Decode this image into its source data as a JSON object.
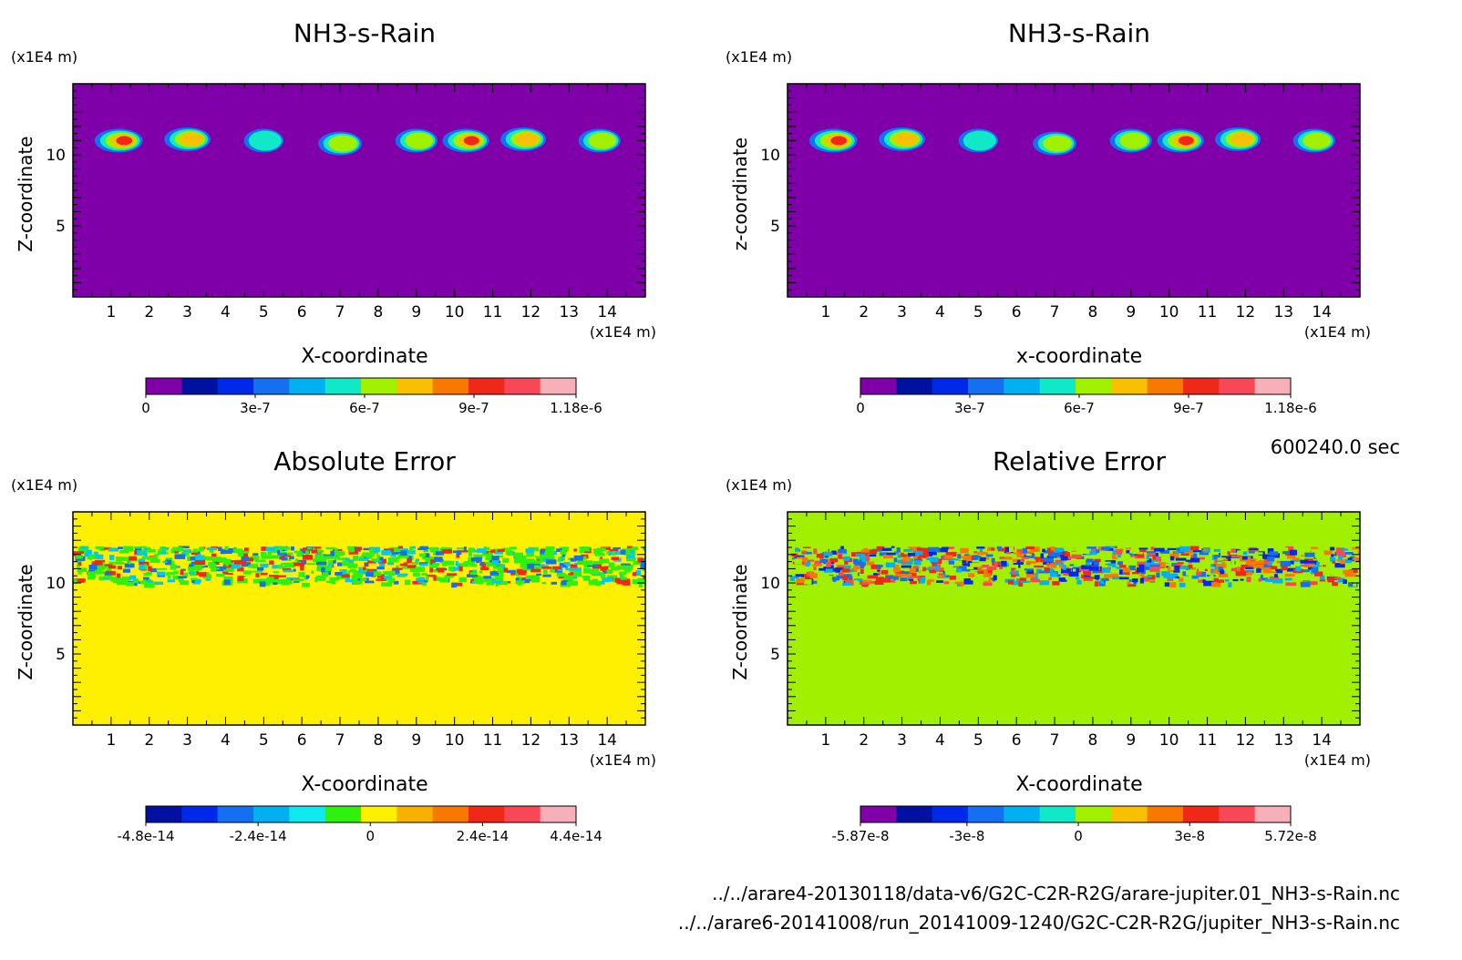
{
  "time_label": "600240.0 sec",
  "files": [
    "../../arare4-20130118/data-v6/G2C-C2R-R2G/arare-jupiter.01_NH3-s-Rain.nc",
    "../../arare6-20141008/run_20141009-1240/G2C-C2R-R2G/jupiter_NH3-s-Rain.nc"
  ],
  "chart_data": [
    {
      "type": "heatmap",
      "title": "NH3-s-Rain",
      "xlabel": "X-coordinate",
      "ylabel": "Z-coordinate",
      "x_unit": "(x1E4 m)",
      "y_unit": "(x1E4 m)",
      "xlim": [
        0,
        15
      ],
      "ylim": [
        0,
        15
      ],
      "xticks": [
        1,
        2,
        3,
        4,
        5,
        6,
        7,
        8,
        9,
        10,
        11,
        12,
        13,
        14
      ],
      "yticks": [
        5,
        10
      ],
      "background": "#7f00a8",
      "colorbar": {
        "colors": [
          "#7f00a8",
          "#0010a0",
          "#0028e8",
          "#1470f0",
          "#00b0f0",
          "#10e8c8",
          "#a0f000",
          "#f8c000",
          "#f87800",
          "#f02818",
          "#f84858",
          "#f8b0b8"
        ],
        "tick_labels": [
          "0",
          "3e-7",
          "6e-7",
          "9e-7",
          "1.18e-6"
        ],
        "tick_values": [
          0,
          3e-07,
          6e-07,
          9e-07,
          1.18e-06
        ],
        "min": 0,
        "max": 1.18e-06
      },
      "features": [
        {
          "x": 1.2,
          "z": 11.0,
          "peak": 1.0
        },
        {
          "x": 3.0,
          "z": 11.1,
          "peak": 0.85
        },
        {
          "x": 5.0,
          "z": 11.0,
          "peak": 0.35
        },
        {
          "x": 7.0,
          "z": 10.8,
          "peak": 0.65
        },
        {
          "x": 9.0,
          "z": 11.0,
          "peak": 0.55
        },
        {
          "x": 10.3,
          "z": 11.0,
          "peak": 0.9
        },
        {
          "x": 11.8,
          "z": 11.1,
          "peak": 0.8
        },
        {
          "x": 13.8,
          "z": 11.0,
          "peak": 0.55
        }
      ]
    },
    {
      "type": "heatmap",
      "title": "NH3-s-Rain",
      "xlabel": "x-coordinate",
      "ylabel": "z-coordinate",
      "x_unit": "(x1E4 m)",
      "y_unit": "(x1E4 m)",
      "xlim": [
        0,
        15
      ],
      "ylim": [
        0,
        15
      ],
      "xticks": [
        1,
        2,
        3,
        4,
        5,
        6,
        7,
        8,
        9,
        10,
        11,
        12,
        13,
        14
      ],
      "yticks": [
        5,
        10
      ],
      "background": "#7f00a8",
      "colorbar": {
        "colors": [
          "#7f00a8",
          "#0010a0",
          "#0028e8",
          "#1470f0",
          "#00b0f0",
          "#10e8c8",
          "#a0f000",
          "#f8c000",
          "#f87800",
          "#f02818",
          "#f84858",
          "#f8b0b8"
        ],
        "tick_labels": [
          "0",
          "3e-7",
          "6e-7",
          "9e-7",
          "1.18e-6"
        ],
        "tick_values": [
          0,
          3e-07,
          6e-07,
          9e-07,
          1.18e-06
        ],
        "min": 0,
        "max": 1.18e-06
      },
      "features": [
        {
          "x": 1.2,
          "z": 11.0,
          "peak": 1.0
        },
        {
          "x": 3.0,
          "z": 11.1,
          "peak": 0.85
        },
        {
          "x": 5.0,
          "z": 11.0,
          "peak": 0.35
        },
        {
          "x": 7.0,
          "z": 10.8,
          "peak": 0.65
        },
        {
          "x": 9.0,
          "z": 11.0,
          "peak": 0.55
        },
        {
          "x": 10.3,
          "z": 11.0,
          "peak": 0.9
        },
        {
          "x": 11.8,
          "z": 11.1,
          "peak": 0.8
        },
        {
          "x": 13.8,
          "z": 11.0,
          "peak": 0.55
        }
      ]
    },
    {
      "type": "heatmap",
      "title": "Absolute Error",
      "xlabel": "X-coordinate",
      "ylabel": "Z-coordinate",
      "x_unit": "(x1E4 m)",
      "y_unit": "(x1E4 m)",
      "xlim": [
        0,
        15
      ],
      "ylim": [
        0,
        15
      ],
      "xticks": [
        1,
        2,
        3,
        4,
        5,
        6,
        7,
        8,
        9,
        10,
        11,
        12,
        13,
        14
      ],
      "yticks": [
        5,
        10
      ],
      "background": "#fff000",
      "noise_band": {
        "z_min": 10.0,
        "z_max": 12.6,
        "colors": [
          "#30f010",
          "#30f010",
          "#30f010",
          "#00c8f0",
          "#1470f0",
          "#f02818"
        ]
      },
      "colorbar": {
        "colors": [
          "#0010a0",
          "#0028e8",
          "#1470f0",
          "#00b0f0",
          "#10e8f0",
          "#30f010",
          "#fff000",
          "#f8b000",
          "#f87800",
          "#f02818",
          "#f84858",
          "#f8b0b8"
        ],
        "tick_labels": [
          "-4.8e-14",
          "-2.4e-14",
          "0",
          "2.4e-14",
          "4.4e-14"
        ],
        "tick_values": [
          -4.8e-14,
          -2.4e-14,
          0,
          2.4e-14,
          4.4e-14
        ],
        "min": -4.8e-14,
        "max": 4.4e-14
      }
    },
    {
      "type": "heatmap",
      "title": "Relative Error",
      "xlabel": "X-coordinate",
      "ylabel": "Z-coordinate",
      "x_unit": "(x1E4 m)",
      "y_unit": "(x1E4 m)",
      "xlim": [
        0,
        15
      ],
      "ylim": [
        0,
        15
      ],
      "xticks": [
        1,
        2,
        3,
        4,
        5,
        6,
        7,
        8,
        9,
        10,
        11,
        12,
        13,
        14
      ],
      "yticks": [
        5,
        10
      ],
      "background": "#a0f000",
      "noise_band": {
        "z_min": 10.0,
        "z_max": 12.6,
        "colors": [
          "#1470f0",
          "#0028e8",
          "#00b0f0",
          "#f02818",
          "#f87800",
          "#f84858",
          "#a0f000"
        ]
      },
      "colorbar": {
        "colors": [
          "#7f00a8",
          "#0010a0",
          "#0028e8",
          "#1470f0",
          "#00b0f0",
          "#10e8c8",
          "#a0f000",
          "#f8c000",
          "#f87800",
          "#f02818",
          "#f84858",
          "#f8b0b8"
        ],
        "tick_labels": [
          "-5.87e-8",
          "-3e-8",
          "0",
          "3e-8",
          "5.72e-8"
        ],
        "tick_values": [
          -5.87e-08,
          -3e-08,
          0,
          3e-08,
          5.72e-08
        ],
        "min": -5.87e-08,
        "max": 5.72e-08
      }
    }
  ]
}
